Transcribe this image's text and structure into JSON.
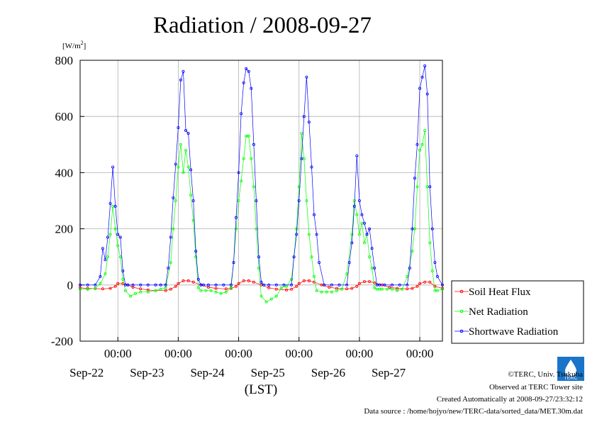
{
  "chart_data": {
    "type": "line",
    "title": "Radiation / 2008-09-27",
    "ylabel": "[W/m2]",
    "ylabel_base": "[W/m",
    "ylabel_sup": "2",
    "ylabel_close": "]",
    "xlabel": "(LST)",
    "ylim": [
      -200,
      800
    ],
    "yticks": [
      -200,
      0,
      200,
      400,
      600,
      800
    ],
    "grid": true,
    "legend_position": "bottom-right",
    "x_unit": "hours since 2008-09-21 00:00 LST",
    "xlim": [
      9,
      153
    ],
    "x_ticks": [
      {
        "x": 24,
        "time": "00:00",
        "date": "Sep-22"
      },
      {
        "x": 48,
        "time": "00:00",
        "date": "Sep-23"
      },
      {
        "x": 72,
        "time": "00:00",
        "date": "Sep-24"
      },
      {
        "x": 96,
        "time": "00:00",
        "date": "Sep-25"
      },
      {
        "x": 120,
        "time": "00:00",
        "date": "Sep-26"
      },
      {
        "x": 144,
        "time": "00:00",
        "date": "Sep-27"
      }
    ],
    "series": [
      {
        "name": "Soil Heat Flux",
        "color": "#ff0000",
        "x": [
          9,
          12,
          15,
          18,
          21,
          23,
          24,
          26,
          28,
          30,
          33,
          36,
          39,
          43,
          45,
          47,
          48,
          50,
          52,
          54,
          57,
          60,
          63,
          67,
          69,
          71,
          72,
          74,
          76,
          78,
          81,
          84,
          87,
          91,
          93,
          95,
          96,
          98,
          100,
          102,
          105,
          108,
          111,
          115,
          117,
          119,
          120,
          122,
          124,
          126,
          129,
          132,
          135,
          139,
          141,
          143,
          144,
          146,
          148,
          150,
          153
        ],
        "y": [
          -10,
          -12,
          -13,
          -14,
          -12,
          -5,
          5,
          5,
          0,
          -8,
          -14,
          -18,
          -20,
          -20,
          -15,
          -5,
          5,
          15,
          15,
          10,
          0,
          -8,
          -12,
          -14,
          -12,
          -5,
          5,
          15,
          15,
          10,
          0,
          -10,
          -15,
          -18,
          -15,
          -5,
          5,
          15,
          15,
          10,
          0,
          -8,
          -12,
          -14,
          -12,
          -5,
          5,
          12,
          12,
          8,
          0,
          -8,
          -12,
          -14,
          -12,
          -5,
          5,
          10,
          10,
          -5,
          -12
        ]
      },
      {
        "name": "Net Radiation",
        "color": "#00ff00",
        "x": [
          9,
          12,
          15,
          17,
          19,
          20,
          21,
          22,
          23,
          24,
          25,
          26,
          27,
          29,
          31,
          33,
          36,
          39,
          41,
          43,
          45,
          46,
          47,
          48,
          49,
          50,
          51,
          52,
          53,
          54,
          55,
          56,
          57,
          59,
          61,
          63,
          65,
          67,
          69,
          70,
          71,
          72,
          73,
          74,
          75,
          76,
          77,
          78,
          79,
          80,
          81,
          83,
          85,
          87,
          89,
          91,
          93,
          94,
          95,
          96,
          97,
          98,
          99,
          100,
          101,
          102,
          103,
          105,
          107,
          109,
          111,
          113,
          115,
          117,
          118,
          119,
          120,
          121,
          122,
          123,
          124,
          125,
          126,
          127,
          128,
          129,
          131,
          133,
          135,
          137,
          139,
          141,
          142,
          143,
          144,
          145,
          146,
          147,
          148,
          149,
          150,
          151,
          153
        ],
        "y": [
          -15,
          -15,
          -12,
          5,
          40,
          100,
          180,
          280,
          200,
          140,
          100,
          20,
          -20,
          -40,
          -30,
          -25,
          -25,
          -20,
          -15,
          -10,
          80,
          200,
          300,
          420,
          500,
          400,
          480,
          420,
          320,
          230,
          100,
          -10,
          -20,
          -20,
          -20,
          -25,
          -30,
          -25,
          -10,
          80,
          200,
          300,
          370,
          450,
          530,
          530,
          450,
          350,
          200,
          60,
          -40,
          -60,
          -50,
          -40,
          -10,
          -5,
          20,
          100,
          200,
          350,
          540,
          450,
          300,
          180,
          100,
          30,
          -20,
          -25,
          -25,
          -25,
          -20,
          -15,
          40,
          180,
          300,
          250,
          180,
          220,
          150,
          180,
          100,
          60,
          -10,
          -15,
          -15,
          -15,
          -15,
          -15,
          -20,
          -15,
          30,
          120,
          200,
          350,
          480,
          500,
          550,
          350,
          150,
          50,
          -20,
          -20,
          -15
        ]
      },
      {
        "name": "Shortwave Radiation",
        "color": "#0000ff",
        "x": [
          9,
          12,
          15,
          17,
          18,
          19,
          20,
          21,
          22,
          23,
          24,
          25,
          26,
          27,
          28,
          30,
          33,
          36,
          39,
          41,
          43,
          44,
          45,
          46,
          47,
          48,
          49,
          50,
          51,
          52,
          53,
          54,
          55,
          56,
          57,
          58,
          60,
          63,
          66,
          69,
          70,
          71,
          72,
          73,
          74,
          75,
          76,
          77,
          78,
          79,
          80,
          81,
          82,
          84,
          87,
          90,
          93,
          94,
          95,
          96,
          97,
          98,
          99,
          100,
          101,
          102,
          103,
          104,
          106,
          109,
          112,
          115,
          116,
          117,
          118,
          119,
          120,
          121,
          122,
          123,
          124,
          125,
          126,
          127,
          128,
          130,
          133,
          136,
          139,
          140,
          141,
          142,
          143,
          144,
          145,
          146,
          147,
          148,
          149,
          150,
          151,
          153
        ],
        "y": [
          0,
          0,
          0,
          30,
          130,
          90,
          170,
          290,
          420,
          280,
          180,
          170,
          50,
          0,
          0,
          0,
          0,
          0,
          0,
          0,
          0,
          60,
          170,
          310,
          430,
          560,
          730,
          760,
          550,
          540,
          410,
          300,
          120,
          20,
          0,
          0,
          0,
          0,
          0,
          0,
          80,
          240,
          400,
          610,
          720,
          770,
          760,
          700,
          500,
          300,
          100,
          10,
          0,
          0,
          0,
          0,
          0,
          100,
          180,
          300,
          450,
          600,
          740,
          580,
          420,
          250,
          180,
          80,
          0,
          0,
          0,
          0,
          80,
          150,
          280,
          460,
          300,
          250,
          220,
          180,
          200,
          130,
          60,
          0,
          0,
          0,
          0,
          0,
          0,
          60,
          200,
          380,
          500,
          700,
          740,
          780,
          680,
          350,
          200,
          80,
          30,
          0
        ]
      }
    ]
  },
  "legend": [
    "Soil Heat Flux",
    "Net Radiation",
    "Shortwave Radiation"
  ],
  "credits": {
    "line1": "©TERC, Univ. Tsukuba",
    "line2": "Observed at TERC Tower site",
    "line3": "Created Automatically at 2008-09-27/23:32:12",
    "line4": "Data source : /home/hojyo/new/TERC-data/sorted_data/MET.30m.dat"
  },
  "logo": {
    "text": "TERC",
    "color": "#1a75c9"
  }
}
